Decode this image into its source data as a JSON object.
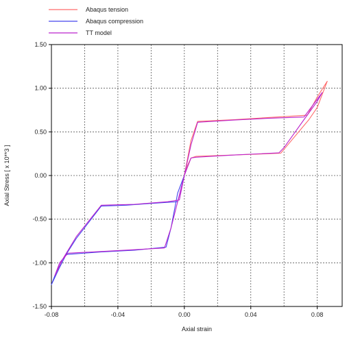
{
  "chart_data": {
    "type": "line",
    "title": "",
    "xlabel": "Axial strain",
    "ylabel": "Axial Stress [ x 10**3 ]",
    "xlim": [
      -0.08,
      0.095
    ],
    "ylim": [
      -1.5,
      1.5
    ],
    "x_ticks": [
      -0.08,
      -0.04,
      0.0,
      0.04,
      0.08
    ],
    "x_tick_labels": [
      "-0.08",
      "-0.04",
      "0.00",
      "0.04",
      "0.08"
    ],
    "y_ticks": [
      1.5,
      1.0,
      0.5,
      0.0,
      -0.5,
      -1.0,
      -1.5
    ],
    "y_tick_labels": [
      "1.50",
      "1.00",
      "0.50",
      "0.00",
      "-0.50",
      "-1.00",
      "-1.50"
    ],
    "grid": true,
    "legend_position": "top-left",
    "series": [
      {
        "name": "Abaqus tension",
        "color": "#ff6a6a",
        "points": [
          [
            0.0,
            0.0
          ],
          [
            0.002,
            0.12
          ],
          [
            0.004,
            0.2
          ],
          [
            0.007,
            0.22
          ],
          [
            0.03,
            0.235
          ],
          [
            0.058,
            0.255
          ],
          [
            0.06,
            0.3
          ],
          [
            0.075,
            0.64
          ],
          [
            0.08,
            0.78
          ],
          [
            0.086,
            1.08
          ],
          [
            0.08,
            0.9
          ],
          [
            0.074,
            0.69
          ],
          [
            0.06,
            0.675
          ],
          [
            0.03,
            0.64
          ],
          [
            0.008,
            0.62
          ],
          [
            0.004,
            0.4
          ],
          [
            0.0,
            0.0
          ]
        ]
      },
      {
        "name": "Abaqus compression",
        "color": "#4444ee",
        "points": [
          [
            0.0,
            0.0
          ],
          [
            -0.004,
            -0.2
          ],
          [
            -0.008,
            -0.6
          ],
          [
            -0.011,
            -0.82
          ],
          [
            -0.03,
            -0.855
          ],
          [
            -0.05,
            -0.875
          ],
          [
            -0.071,
            -0.905
          ],
          [
            -0.075,
            -1.0
          ],
          [
            -0.08,
            -1.25
          ],
          [
            -0.075,
            -1.05
          ],
          [
            -0.071,
            -0.9
          ],
          [
            -0.065,
            -0.72
          ],
          [
            -0.05,
            -0.35
          ],
          [
            -0.035,
            -0.34
          ],
          [
            -0.02,
            -0.32
          ],
          [
            -0.004,
            -0.3
          ],
          [
            -0.002,
            -0.15
          ],
          [
            0.0,
            0.0
          ]
        ]
      },
      {
        "name": "TT model",
        "color": "#bb22cc",
        "points": [
          [
            0.0,
            0.0
          ],
          [
            0.004,
            0.2
          ],
          [
            0.007,
            0.21
          ],
          [
            0.03,
            0.235
          ],
          [
            0.057,
            0.26
          ],
          [
            0.06,
            0.32
          ],
          [
            0.072,
            0.64
          ],
          [
            0.08,
            0.85
          ],
          [
            0.083,
            0.95
          ],
          [
            0.072,
            0.67
          ],
          [
            0.05,
            0.655
          ],
          [
            0.03,
            0.635
          ],
          [
            0.008,
            0.61
          ],
          [
            0.004,
            0.35
          ],
          [
            0.0,
            0.0
          ],
          [
            -0.004,
            -0.3
          ],
          [
            -0.008,
            -0.6
          ],
          [
            -0.012,
            -0.83
          ],
          [
            -0.03,
            -0.85
          ],
          [
            -0.05,
            -0.87
          ],
          [
            -0.07,
            -0.89
          ],
          [
            -0.075,
            -1.0
          ],
          [
            -0.078,
            -1.15
          ],
          [
            -0.073,
            -0.95
          ],
          [
            -0.065,
            -0.7
          ],
          [
            -0.05,
            -0.34
          ],
          [
            -0.03,
            -0.33
          ],
          [
            -0.01,
            -0.3
          ],
          [
            -0.003,
            -0.28
          ],
          [
            0.0,
            0.0
          ]
        ]
      }
    ]
  }
}
